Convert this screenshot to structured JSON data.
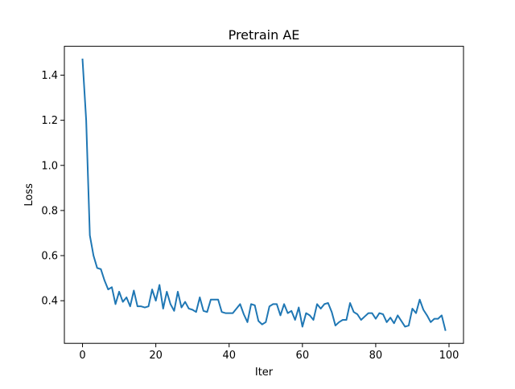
{
  "chart_data": {
    "type": "line",
    "title": "Pretrain AE",
    "xlabel": "Iter",
    "ylabel": "Loss",
    "xlim": [
      -4.95,
      103.95
    ],
    "ylim": [
      0.211,
      1.528
    ],
    "xticks": [
      0,
      20,
      40,
      60,
      80,
      100
    ],
    "yticks": [
      0.4,
      0.6,
      0.8,
      1.0,
      1.2,
      1.4
    ],
    "xtick_labels": [
      "0",
      "20",
      "40",
      "60",
      "80",
      "100"
    ],
    "ytick_labels": [
      "0.4",
      "0.6",
      "0.8",
      "1.0",
      "1.2",
      "1.4"
    ],
    "grid": false,
    "legend": "none",
    "series": [
      {
        "color": "#1f77b4",
        "x": [
          0,
          1,
          2,
          3,
          4,
          5,
          6,
          7,
          8,
          9,
          10,
          11,
          12,
          13,
          14,
          15,
          16,
          17,
          18,
          19,
          20,
          21,
          22,
          23,
          24,
          25,
          26,
          27,
          28,
          29,
          30,
          31,
          32,
          33,
          34,
          35,
          36,
          37,
          38,
          39,
          40,
          41,
          42,
          43,
          44,
          45,
          46,
          47,
          48,
          49,
          50,
          51,
          52,
          53,
          54,
          55,
          56,
          57,
          58,
          59,
          60,
          61,
          62,
          63,
          64,
          65,
          66,
          67,
          68,
          69,
          70,
          71,
          72,
          73,
          74,
          75,
          76,
          77,
          78,
          79,
          80,
          81,
          82,
          83,
          84,
          85,
          86,
          87,
          88,
          89,
          90,
          91,
          92,
          93,
          94,
          95,
          96,
          97,
          98,
          99
        ],
        "y": [
          1.47,
          1.2,
          0.69,
          0.6,
          0.545,
          0.54,
          0.49,
          0.45,
          0.46,
          0.385,
          0.44,
          0.395,
          0.415,
          0.375,
          0.445,
          0.375,
          0.375,
          0.37,
          0.375,
          0.45,
          0.4,
          0.47,
          0.365,
          0.44,
          0.385,
          0.355,
          0.44,
          0.37,
          0.395,
          0.365,
          0.36,
          0.35,
          0.415,
          0.355,
          0.35,
          0.405,
          0.405,
          0.405,
          0.35,
          0.345,
          0.345,
          0.345,
          0.365,
          0.385,
          0.34,
          0.305,
          0.385,
          0.38,
          0.31,
          0.295,
          0.305,
          0.375,
          0.385,
          0.385,
          0.335,
          0.385,
          0.345,
          0.355,
          0.315,
          0.37,
          0.285,
          0.345,
          0.335,
          0.315,
          0.385,
          0.365,
          0.385,
          0.39,
          0.35,
          0.29,
          0.305,
          0.315,
          0.315,
          0.39,
          0.35,
          0.34,
          0.315,
          0.33,
          0.345,
          0.345,
          0.32,
          0.345,
          0.34,
          0.305,
          0.325,
          0.3,
          0.335,
          0.31,
          0.285,
          0.29,
          0.365,
          0.345,
          0.405,
          0.36,
          0.335,
          0.305,
          0.32,
          0.32,
          0.335,
          0.27
        ]
      }
    ]
  }
}
